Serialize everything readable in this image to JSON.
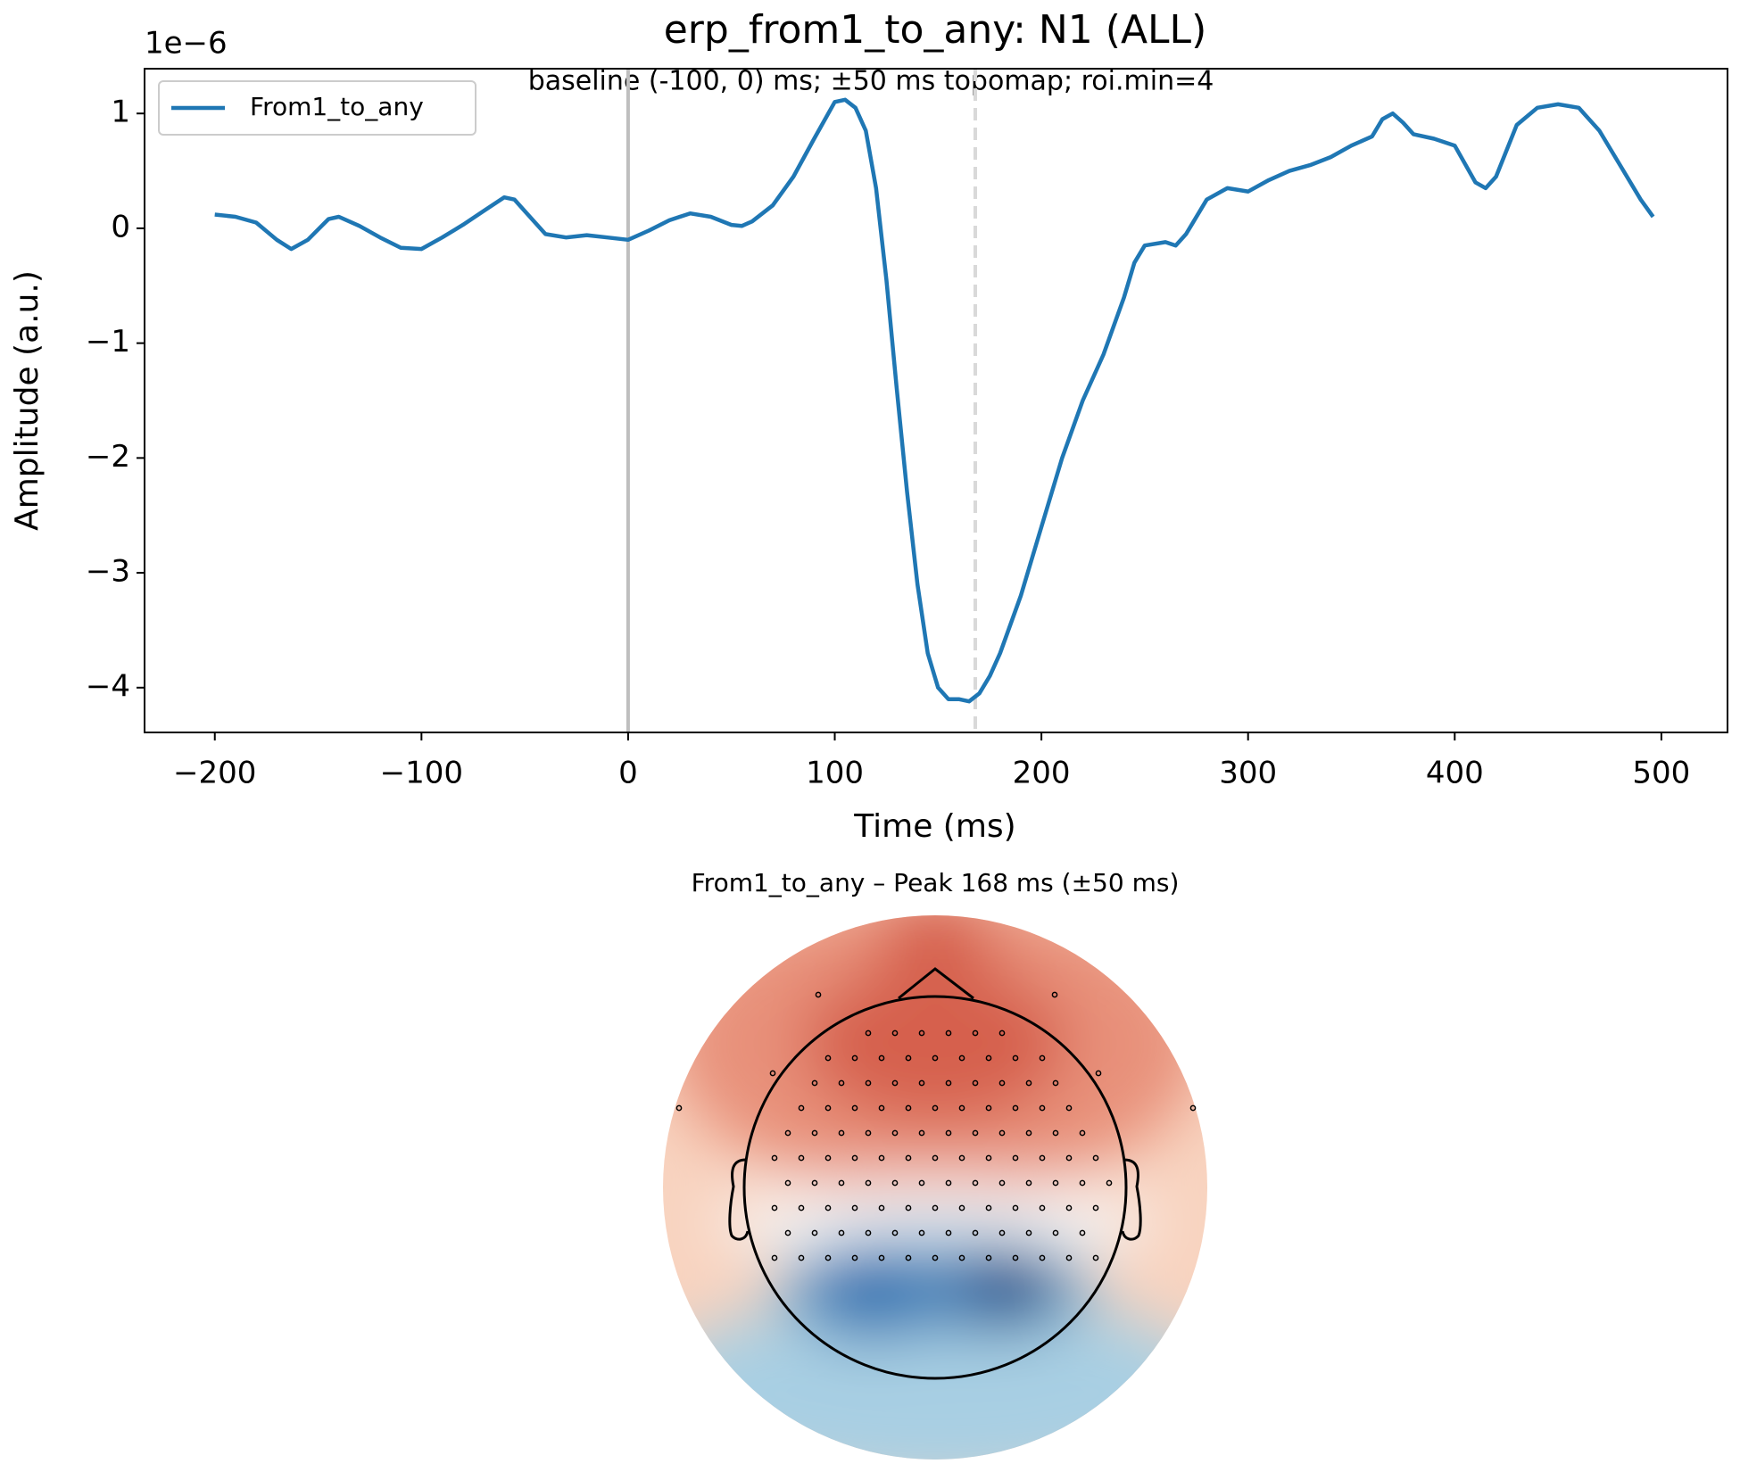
{
  "chart_data": {
    "type": "line",
    "title": "erp_from1_to_any: N1 (ALL)",
    "subtitle": "baseline (-100, 0) ms; ±50 ms topomap; roi.min=4",
    "x_label": "Time (ms)",
    "y_label": "Amplitude (a.u.)",
    "y_offset_label": "1e−6",
    "legend": "upper left",
    "x": [
      -200,
      -190,
      -180,
      -170,
      -163,
      -155,
      -145,
      -140,
      -130,
      -120,
      -110,
      -100,
      -90,
      -80,
      -70,
      -60,
      -55,
      -50,
      -40,
      -30,
      -20,
      -10,
      0,
      10,
      20,
      30,
      40,
      50,
      55,
      60,
      70,
      80,
      90,
      100,
      105,
      110,
      115,
      120,
      125,
      130,
      135,
      140,
      145,
      150,
      155,
      160,
      165,
      170,
      175,
      180,
      190,
      200,
      210,
      220,
      230,
      240,
      245,
      250,
      260,
      265,
      270,
      280,
      290,
      300,
      310,
      320,
      330,
      340,
      350,
      360,
      365,
      370,
      375,
      380,
      390,
      400,
      410,
      415,
      420,
      430,
      440,
      450,
      460,
      470,
      480,
      490,
      496
    ],
    "series": [
      {
        "name": "From1_to_any",
        "color": "#1f77b4",
        "values": [
          0.12,
          0.1,
          0.05,
          -0.1,
          -0.18,
          -0.1,
          0.08,
          0.1,
          0.02,
          -0.08,
          -0.17,
          -0.18,
          -0.08,
          0.03,
          0.15,
          0.27,
          0.25,
          0.15,
          -0.05,
          -0.08,
          -0.06,
          -0.08,
          -0.1,
          -0.02,
          0.07,
          0.13,
          0.1,
          0.03,
          0.02,
          0.06,
          0.2,
          0.45,
          0.78,
          1.1,
          1.12,
          1.05,
          0.85,
          0.35,
          -0.45,
          -1.4,
          -2.3,
          -3.1,
          -3.7,
          -4.0,
          -4.1,
          -4.1,
          -4.12,
          -4.05,
          -3.9,
          -3.7,
          -3.2,
          -2.6,
          -2.0,
          -1.5,
          -1.1,
          -0.6,
          -0.3,
          -0.15,
          -0.12,
          -0.15,
          -0.05,
          0.25,
          0.35,
          0.32,
          0.42,
          0.5,
          0.55,
          0.62,
          0.72,
          0.8,
          0.95,
          1.0,
          0.92,
          0.82,
          0.78,
          0.72,
          0.4,
          0.35,
          0.45,
          0.9,
          1.05,
          1.08,
          1.05,
          0.85,
          0.55,
          0.25,
          0.1
        ]
      }
    ],
    "xlim": [
      -234,
      532
    ],
    "ylim": [
      -4.39,
      1.39
    ],
    "xticks": [
      {
        "value": -200,
        "label": "−200"
      },
      {
        "value": -100,
        "label": "−100"
      },
      0,
      100,
      200,
      300,
      400,
      500
    ],
    "yticks": [
      {
        "value": -4,
        "label": "−4"
      },
      {
        "value": -3,
        "label": "−3"
      },
      {
        "value": -2,
        "label": "−2"
      },
      {
        "value": -1,
        "label": "−1"
      },
      0,
      1
    ],
    "vlines": [
      {
        "value": 0,
        "color": "#bfbfbf",
        "dashed": false
      },
      {
        "value": 168,
        "color": "#d9d9d9",
        "dashed": true
      }
    ],
    "topomap_title": "From1_to_any – Peak 168 ms (±50 ms)"
  }
}
